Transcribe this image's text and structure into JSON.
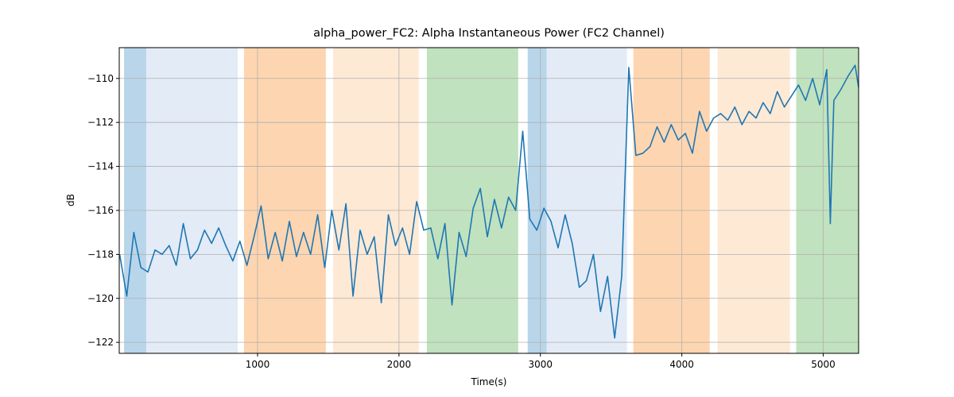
{
  "chart_data": {
    "type": "line",
    "title": "alpha_power_FC2: Alpha Instantaneous Power (FC2 Channel)",
    "x_label": "Time(s)",
    "y_label": "dB",
    "xlim": [
      22,
      5250
    ],
    "ylim": [
      -122.5,
      -108.6
    ],
    "xticks": [
      1000,
      2000,
      3000,
      4000,
      5000
    ],
    "yticks": [
      {
        "value": -122,
        "label": "−122"
      },
      {
        "value": -120,
        "label": "−120"
      },
      {
        "value": -118,
        "label": "−118"
      },
      {
        "value": -116,
        "label": "−116"
      },
      {
        "value": -114,
        "label": "−114"
      },
      {
        "value": -112,
        "label": "−112"
      },
      {
        "value": -110,
        "label": "−110"
      }
    ],
    "grid": true,
    "spans": [
      {
        "x": [
          56,
          213
        ],
        "color": "#b9d5ea"
      },
      {
        "x": [
          213,
          860
        ],
        "color": "#e3ebf6"
      },
      {
        "x": [
          904,
          1483
        ],
        "color": "#fdd5b0"
      },
      {
        "x": [
          1534,
          2140
        ],
        "color": "#fee9d5"
      },
      {
        "x": [
          2197,
          2843
        ],
        "color": "#c0e2be"
      },
      {
        "x": [
          2910,
          3045
        ],
        "color": "#b9d5ea"
      },
      {
        "x": [
          3045,
          3612
        ],
        "color": "#e3ebf6"
      },
      {
        "x": [
          3657,
          4197
        ],
        "color": "#fdd5b0"
      },
      {
        "x": [
          4253,
          4764
        ],
        "color": "#fee9d5"
      },
      {
        "x": [
          4809,
          5250
        ],
        "color": "#c0e2be"
      }
    ],
    "x": [
      25,
      75,
      125,
      175,
      225,
      275,
      325,
      375,
      425,
      475,
      525,
      575,
      625,
      675,
      725,
      775,
      825,
      875,
      925,
      975,
      1025,
      1075,
      1125,
      1175,
      1225,
      1275,
      1325,
      1375,
      1425,
      1475,
      1525,
      1575,
      1625,
      1675,
      1725,
      1775,
      1825,
      1875,
      1925,
      1975,
      2025,
      2075,
      2125,
      2175,
      2225,
      2275,
      2325,
      2375,
      2425,
      2475,
      2525,
      2575,
      2625,
      2675,
      2725,
      2775,
      2825,
      2875,
      2925,
      2975,
      3025,
      3075,
      3125,
      3175,
      3225,
      3275,
      3325,
      3375,
      3425,
      3475,
      3525,
      3575,
      3625,
      3675,
      3725,
      3775,
      3825,
      3875,
      3925,
      3975,
      4025,
      4075,
      4125,
      4175,
      4225,
      4275,
      4325,
      4375,
      4425,
      4475,
      4525,
      4575,
      4625,
      4675,
      4725,
      4775,
      4825,
      4875,
      4925,
      4975,
      5025,
      5050,
      5075,
      5125,
      5175,
      5225,
      5250
    ],
    "series": [
      {
        "color": "#1f77b4",
        "values": [
          -118.0,
          -119.9,
          -117.0,
          -118.6,
          -118.8,
          -117.8,
          -118.0,
          -117.6,
          -118.5,
          -116.6,
          -118.2,
          -117.8,
          -116.9,
          -117.5,
          -116.8,
          -117.6,
          -118.3,
          -117.4,
          -118.5,
          -117.2,
          -115.8,
          -118.2,
          -117.0,
          -118.3,
          -116.5,
          -118.1,
          -117.0,
          -118.0,
          -116.2,
          -118.6,
          -116.0,
          -117.8,
          -115.7,
          -119.9,
          -116.9,
          -118.0,
          -117.2,
          -120.2,
          -116.2,
          -117.6,
          -116.8,
          -118.0,
          -115.6,
          -116.9,
          -116.8,
          -118.2,
          -116.6,
          -120.3,
          -117.0,
          -118.1,
          -115.9,
          -115.0,
          -117.2,
          -115.5,
          -116.8,
          -115.4,
          -116.0,
          -112.4,
          -116.4,
          -116.9,
          -115.9,
          -116.5,
          -117.7,
          -116.2,
          -117.5,
          -119.5,
          -119.2,
          -118.0,
          -120.6,
          -119.0,
          -121.8,
          -119.0,
          -109.5,
          -113.5,
          -113.4,
          -113.1,
          -112.2,
          -112.9,
          -112.1,
          -112.8,
          -112.5,
          -113.4,
          -111.5,
          -112.4,
          -111.8,
          -111.6,
          -111.9,
          -111.3,
          -112.1,
          -111.5,
          -111.8,
          -111.1,
          -111.6,
          -110.6,
          -111.3,
          -110.8,
          -110.3,
          -111.0,
          -110.0,
          -111.2,
          -109.6,
          -116.6,
          -111.0,
          -110.5,
          -109.9,
          -109.4,
          -110.4
        ]
      }
    ]
  }
}
